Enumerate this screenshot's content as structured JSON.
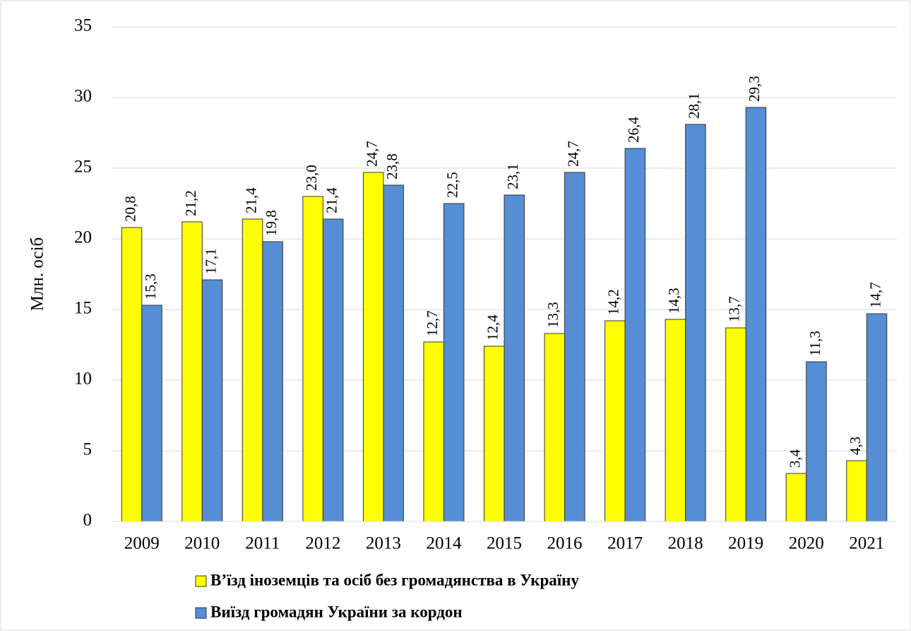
{
  "chart_data": {
    "type": "bar",
    "y_label": "Млн. осіб",
    "categories": [
      "2009",
      "2010",
      "2011",
      "2012",
      "2013",
      "2014",
      "2015",
      "2016",
      "2017",
      "2018",
      "2019",
      "2020",
      "2021"
    ],
    "series": [
      {
        "name": "В’їзд іноземців та осіб без громадянства в Україну",
        "color": "#ffff00",
        "values": [
          20.8,
          21.2,
          21.4,
          23.0,
          24.7,
          12.7,
          12.4,
          13.3,
          14.2,
          14.3,
          13.7,
          3.4,
          4.3
        ],
        "value_labels": [
          "20,8",
          "21,2",
          "21,4",
          "23,0",
          "24,7",
          "12,7",
          "12,4",
          "13,3",
          "14,2",
          "14,3",
          "13,7",
          "3,4",
          "4,3"
        ]
      },
      {
        "name": "Виїзд громадян України за кордон",
        "color": "#558ed5",
        "values": [
          15.3,
          17.1,
          19.8,
          21.4,
          23.8,
          22.5,
          23.1,
          24.7,
          26.4,
          28.1,
          29.3,
          11.3,
          14.7
        ],
        "value_labels": [
          "15,3",
          "17,1",
          "19,8",
          "21,4",
          "23,8",
          "22,5",
          "23,1",
          "24,7",
          "26,4",
          "28,1",
          "29,3",
          "11,3",
          "14,7"
        ]
      }
    ],
    "ylim": [
      0,
      35
    ],
    "yticks": [
      0,
      5,
      10,
      15,
      20,
      25,
      30,
      35
    ],
    "grid": true,
    "legend": "bottom"
  }
}
